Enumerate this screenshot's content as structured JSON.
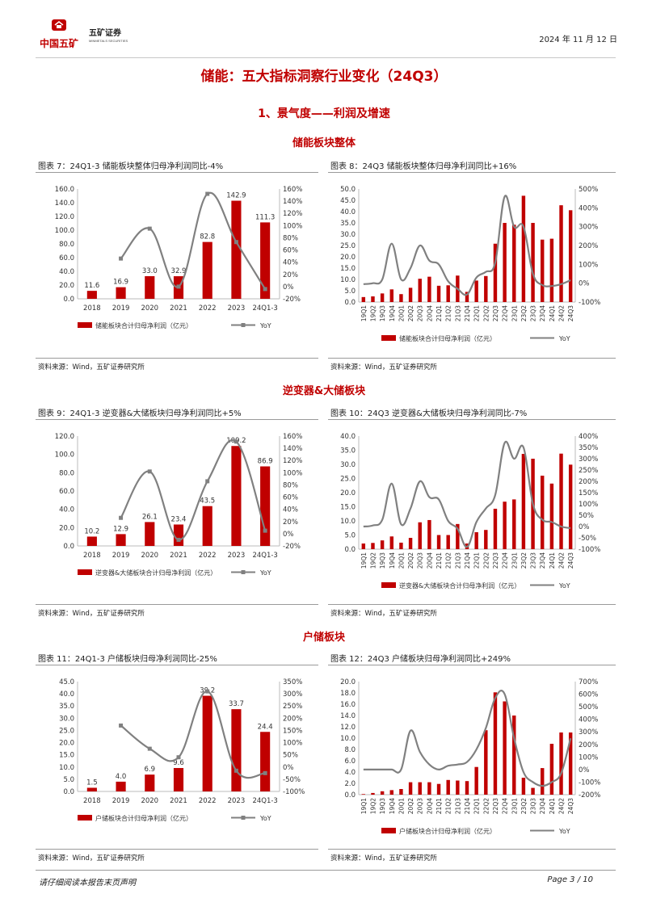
{
  "header": {
    "logo_text_cn": "中国五矿",
    "brand_cn": "五矿证券",
    "brand_en": "MINMETALS SECURITIES",
    "date": "2024 年 11 月 12 日"
  },
  "title": "储能：五大指标洞察行业变化（24Q3）",
  "section": "1、景气度——利润及增速",
  "subsections": [
    "储能板块整体",
    "逆变器&大储板块",
    "户储板块"
  ],
  "footer": {
    "disclaimer": "请仔细阅读本报告末页声明",
    "page": "Page   3 / 10"
  },
  "colors": {
    "bar": "#c00000",
    "line": "#808080",
    "accent": "#c00000"
  },
  "chart_data": [
    {
      "id": "c7",
      "type": "bar+line",
      "caption": "图表 7：24Q1-3 储能板块整体归母净利润同比-4%",
      "source": "资料来源：Wind，五矿证券研究所",
      "categories": [
        "2018",
        "2019",
        "2020",
        "2021",
        "2022",
        "2023",
        "24Q1-3"
      ],
      "bar_series": {
        "name": "储能板块合计归母净利润（亿元）",
        "values": [
          11.6,
          16.9,
          33.0,
          32.9,
          82.8,
          142.9,
          111.3
        ]
      },
      "line_series": {
        "name": "YoY",
        "values": [
          null,
          46,
          95,
          0,
          152,
          73,
          -4
        ]
      },
      "left_axis": {
        "min": 0,
        "max": 160,
        "step": 20,
        "labels": [
          "0.0",
          "20.0",
          "40.0",
          "60.0",
          "80.0",
          "100.0",
          "120.0",
          "140.0",
          "160.0"
        ]
      },
      "right_axis": {
        "min": -20,
        "max": 160,
        "step": 20,
        "labels": [
          "-20%",
          "0%",
          "20%",
          "40%",
          "60%",
          "80%",
          "100%",
          "120%",
          "140%",
          "160%"
        ]
      },
      "data_labels": [
        "11.6",
        "16.9",
        "33.0",
        "32.9",
        "82.8",
        "142.9",
        "111.3"
      ],
      "marker": true
    },
    {
      "id": "c8",
      "type": "bar+line",
      "caption": "图表 8：24Q3 储能板块整体归母净利润同比+16%",
      "source": "资料来源：Wind，五矿证券研究所",
      "categories": [
        "19Q1",
        "19Q2",
        "19Q3",
        "19Q4",
        "20Q1",
        "20Q2",
        "20Q3",
        "20Q4",
        "21Q1",
        "21Q2",
        "21Q3",
        "21Q4",
        "22Q1",
        "22Q2",
        "22Q3",
        "22Q4",
        "23Q1",
        "23Q2",
        "23Q3",
        "23Q4",
        "24Q1",
        "24Q2",
        "24Q3"
      ],
      "bar_series": {
        "name": "储能板块合计归母净利润（亿元）",
        "values": [
          2.2,
          2.5,
          3.8,
          5.6,
          3.5,
          6.3,
          10.3,
          11.2,
          7.2,
          7.4,
          11.7,
          4.5,
          9.5,
          11.5,
          25.8,
          35.0,
          34.2,
          47.0,
          35.0,
          27.6,
          28.0,
          42.8,
          40.6
        ]
      },
      "line_series": {
        "name": "YoY",
        "values": [
          -5,
          0,
          20,
          210,
          20,
          80,
          200,
          120,
          100,
          10,
          -30,
          -60,
          30,
          60,
          110,
          460,
          300,
          300,
          50,
          -10,
          -15,
          -5,
          16
        ]
      },
      "left_axis": {
        "min": 0,
        "max": 50,
        "step": 5,
        "labels": [
          "0.0",
          "5.0",
          "10.0",
          "15.0",
          "20.0",
          "25.0",
          "30.0",
          "35.0",
          "40.0",
          "45.0",
          "50.0"
        ]
      },
      "right_axis": {
        "min": -100,
        "max": 500,
        "step": 100,
        "labels": [
          "-100%",
          "0%",
          "100%",
          "200%",
          "300%",
          "400%",
          "500%"
        ]
      },
      "data_labels": [],
      "marker": false
    },
    {
      "id": "c9",
      "type": "bar+line",
      "caption": "图表 9：24Q1-3 逆变器&大储板块归母净利润同比+5%",
      "source": "资料来源：Wind，五矿证券研究所",
      "categories": [
        "2018",
        "2019",
        "2020",
        "2021",
        "2022",
        "2023",
        "24Q1-3"
      ],
      "bar_series": {
        "name": "逆变器&大储板块合计归母净利润（亿元）",
        "values": [
          10.2,
          12.9,
          26.1,
          23.4,
          43.5,
          109.2,
          86.9
        ]
      },
      "line_series": {
        "name": "YoY",
        "values": [
          null,
          26,
          102,
          -10,
          86,
          151,
          5
        ]
      },
      "left_axis": {
        "min": 0,
        "max": 120,
        "step": 20,
        "labels": [
          "0.0",
          "20.0",
          "40.0",
          "60.0",
          "80.0",
          "100.0",
          "120.0"
        ]
      },
      "right_axis": {
        "min": -20,
        "max": 160,
        "step": 20,
        "labels": [
          "-20%",
          "0%",
          "20%",
          "40%",
          "60%",
          "80%",
          "100%",
          "120%",
          "140%",
          "160%"
        ]
      },
      "data_labels": [
        "10.2",
        "12.9",
        "26.1",
        "23.4",
        "43.5",
        "109.2",
        "86.9"
      ],
      "marker": true
    },
    {
      "id": "c10",
      "type": "bar+line",
      "caption": "图表 10：24Q3 逆变器&大储板块归母净利润同比-7%",
      "source": "资料来源：Wind，五矿证券研究所",
      "categories": [
        "19Q1",
        "19Q2",
        "19Q3",
        "19Q4",
        "20Q1",
        "20Q2",
        "20Q3",
        "20Q4",
        "21Q1",
        "21Q2",
        "21Q3",
        "21Q4",
        "22Q1",
        "22Q2",
        "22Q3",
        "22Q4",
        "23Q1",
        "23Q2",
        "23Q3",
        "23Q4",
        "24Q1",
        "24Q2",
        "24Q3"
      ],
      "bar_series": {
        "name": "逆变器&大储板块合计归母净利润（亿元）",
        "values": [
          2.0,
          2.2,
          3.1,
          4.5,
          2.3,
          4.0,
          9.5,
          10.3,
          5.0,
          5.0,
          8.9,
          2.0,
          6.0,
          6.8,
          14.3,
          16.8,
          17.6,
          33.7,
          32.0,
          26.0,
          23.2,
          33.8,
          29.9
        ]
      },
      "line_series": {
        "name": "YoY",
        "values": [
          0,
          5,
          30,
          190,
          10,
          80,
          200,
          130,
          120,
          25,
          -10,
          -90,
          20,
          80,
          140,
          370,
          300,
          350,
          100,
          30,
          20,
          0,
          -7
        ]
      },
      "left_axis": {
        "min": 0,
        "max": 40,
        "step": 5,
        "labels": [
          "0.0",
          "5.0",
          "10.0",
          "15.0",
          "20.0",
          "25.0",
          "30.0",
          "35.0",
          "40.0"
        ]
      },
      "right_axis": {
        "min": -100,
        "max": 400,
        "step": 50,
        "labels": [
          "-100%",
          "-50%",
          "0%",
          "50%",
          "100%",
          "150%",
          "200%",
          "250%",
          "300%",
          "350%",
          "400%"
        ]
      },
      "data_labels": [],
      "marker": false
    },
    {
      "id": "c11",
      "type": "bar+line",
      "caption": "图表 11：24Q1-3 户储板块归母净利润同比-25%",
      "source": "资料来源：Wind，五矿证券研究所",
      "categories": [
        "2018",
        "2019",
        "2020",
        "2021",
        "2022",
        "2023",
        "24Q1-3"
      ],
      "bar_series": {
        "name": "户储板块合计归母净利润（亿元）",
        "values": [
          1.5,
          4.0,
          6.9,
          9.6,
          39.2,
          33.7,
          24.4
        ]
      },
      "line_series": {
        "name": "YoY",
        "values": [
          null,
          170,
          75,
          40,
          310,
          -15,
          -25
        ]
      },
      "left_axis": {
        "min": 0,
        "max": 45,
        "step": 5,
        "labels": [
          "0.0",
          "5.0",
          "10.0",
          "15.0",
          "20.0",
          "25.0",
          "30.0",
          "35.0",
          "40.0",
          "45.0"
        ]
      },
      "right_axis": {
        "min": -100,
        "max": 350,
        "step": 50,
        "labels": [
          "-100%",
          "-50%",
          "0%",
          "50%",
          "100%",
          "150%",
          "200%",
          "250%",
          "300%",
          "350%"
        ]
      },
      "data_labels": [
        "1.5",
        "4.0",
        "6.9",
        "9.6",
        "39.2",
        "33.7",
        "24.4"
      ],
      "marker": true
    },
    {
      "id": "c12",
      "type": "bar+line",
      "caption": "图表 12：24Q3 户储板块归母净利润同比+249%",
      "source": "资料来源：Wind，五矿证券研究所",
      "categories": [
        "19Q1",
        "19Q2",
        "19Q3",
        "19Q4",
        "20Q1",
        "20Q2",
        "20Q3",
        "20Q4",
        "21Q1",
        "21Q2",
        "21Q3",
        "21Q4",
        "22Q1",
        "22Q2",
        "22Q3",
        "22Q4",
        "23Q1",
        "23Q2",
        "23Q3",
        "23Q4",
        "24Q1",
        "24Q2",
        "24Q3"
      ],
      "bar_series": {
        "name": "户储板块合计归母净利润（亿元）",
        "values": [
          0.1,
          0.3,
          0.6,
          0.8,
          1.0,
          2.2,
          2.2,
          2.2,
          1.9,
          2.6,
          2.5,
          2.4,
          4.9,
          11.4,
          18.1,
          16.5,
          14.0,
          3.0,
          1.2,
          4.7,
          9.0,
          11.0,
          11.0
        ]
      },
      "line_series": {
        "name": "YoY",
        "values": [
          0,
          0,
          0,
          0,
          0,
          310,
          140,
          40,
          0,
          30,
          40,
          60,
          160,
          330,
          570,
          600,
          250,
          -20,
          -100,
          -130,
          -100,
          -30,
          249
        ]
      },
      "left_axis": {
        "min": 0,
        "max": 20,
        "step": 2,
        "labels": [
          "0.0",
          "2.0",
          "4.0",
          "6.0",
          "8.0",
          "10.0",
          "12.0",
          "14.0",
          "16.0",
          "18.0",
          "20.0"
        ]
      },
      "right_axis": {
        "min": -200,
        "max": 700,
        "step": 100,
        "labels": [
          "-200%",
          "-100%",
          "0%",
          "100%",
          "200%",
          "300%",
          "400%",
          "500%",
          "600%",
          "700%"
        ]
      },
      "data_labels": [],
      "marker": false
    }
  ]
}
